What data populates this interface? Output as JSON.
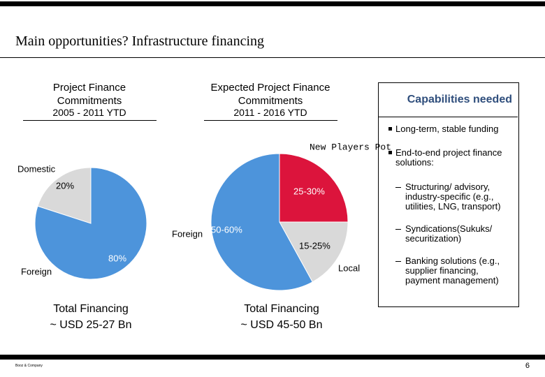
{
  "title": "Main opportunities? Infrastructure financing",
  "chart_data": [
    {
      "type": "pie",
      "title": "Project Finance Commitments",
      "subtitle": "2005 - 2011 YTD",
      "categories": [
        "Domestic",
        "Foreign"
      ],
      "values": [
        20,
        80
      ],
      "value_labels": [
        "20%",
        "80%"
      ],
      "colors": [
        "#d9d9d9",
        "#4d94db"
      ],
      "footnote": [
        "Total  Financing",
        "~ USD 25-27 Bn"
      ]
    },
    {
      "type": "pie",
      "title": "Expected Project Finance Commitments",
      "subtitle": "2011 - 2016 YTD",
      "categories": [
        "New Players Pot",
        "Local",
        "Foreign"
      ],
      "values": [
        25,
        17,
        58
      ],
      "value_labels": [
        "25-30%",
        "15-25%",
        "50-60%"
      ],
      "colors": [
        "#dc143c",
        "#d9d9d9",
        "#4d94db"
      ],
      "footnote": [
        "Total  Financing",
        "~ USD 45-50 Bn"
      ]
    }
  ],
  "capabilities": {
    "header": "Capabilities needed",
    "items": [
      "Long-term, stable funding",
      "End-to-end project finance solutions:",
      "Structuring/ advisory, industry-specific (e.g., utilities, LNG, transport)",
      "Syndications(Sukuks/ securitization)",
      "Banking solutions (e.g., supplier financing, payment management)"
    ]
  },
  "footer": {
    "source": "Booz & Company",
    "page": "6"
  }
}
